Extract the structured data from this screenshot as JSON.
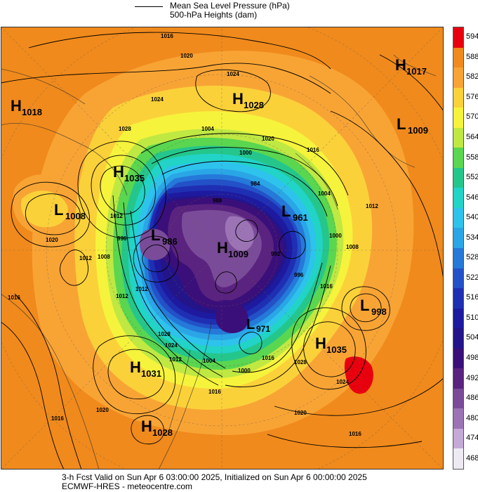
{
  "legend": {
    "mslp_label": "Mean Sea Level Pressure (hPa)",
    "heights_label": "500-hPa Heights (dam)"
  },
  "colorbar": {
    "levels": [
      "594",
      "588",
      "582",
      "576",
      "570",
      "564",
      "558",
      "552",
      "546",
      "540",
      "534",
      "528",
      "522",
      "516",
      "510",
      "504",
      "498",
      "492",
      "486",
      "480",
      "474",
      "468"
    ],
    "colors": [
      "#e8000e",
      "#f08a1c",
      "#f8a435",
      "#fbd13a",
      "#f6f33c",
      "#bfe843",
      "#5ad650",
      "#25c68c",
      "#22d3c7",
      "#2ec3ec",
      "#2aa6e6",
      "#2579d9",
      "#2351c8",
      "#1f2fb3",
      "#1d1aa0",
      "#241489",
      "#3a0f7a",
      "#5a237f",
      "#7a4b99",
      "#9c74b6",
      "#c5a9d6",
      "#eeeaf3"
    ]
  },
  "systems": [
    {
      "type": "H",
      "value": "1017"
    },
    {
      "type": "H",
      "value": "1018"
    },
    {
      "type": "H",
      "value": "1028"
    },
    {
      "type": "L",
      "value": "1009"
    },
    {
      "type": "H",
      "value": "1035"
    },
    {
      "type": "L",
      "value": "1008"
    },
    {
      "type": "L",
      "value": "986"
    },
    {
      "type": "L",
      "value": "961"
    },
    {
      "type": "H",
      "value": "1009"
    },
    {
      "type": "L",
      "value": "998"
    },
    {
      "type": "L",
      "value": "971"
    },
    {
      "type": "H",
      "value": "1035"
    },
    {
      "type": "H",
      "value": "1031"
    },
    {
      "type": "H",
      "value": "1028"
    }
  ],
  "isobar_labels": [
    "1016",
    "1020",
    "1024",
    "1028",
    "1024",
    "1020",
    "1016",
    "1012",
    "1008",
    "1004",
    "1000",
    "996",
    "992",
    "988",
    "984",
    "1016",
    "1012",
    "1004",
    "1000",
    "996",
    "1012",
    "1016",
    "1024",
    "1028",
    "1020",
    "1016",
    "1012",
    "1020",
    "1016",
    "1028",
    "1024",
    "1000",
    "1008",
    "1004",
    "1016",
    "1012",
    "1020",
    "1016",
    "1012"
  ],
  "footer": {
    "line1": "3-h Fcst Valid on Sun Apr  6 03:00:00 2025, Initialized on Sun Apr  6 00:00:00 2025",
    "line2": "ECMWF-HRES  - meteocentre.com"
  }
}
